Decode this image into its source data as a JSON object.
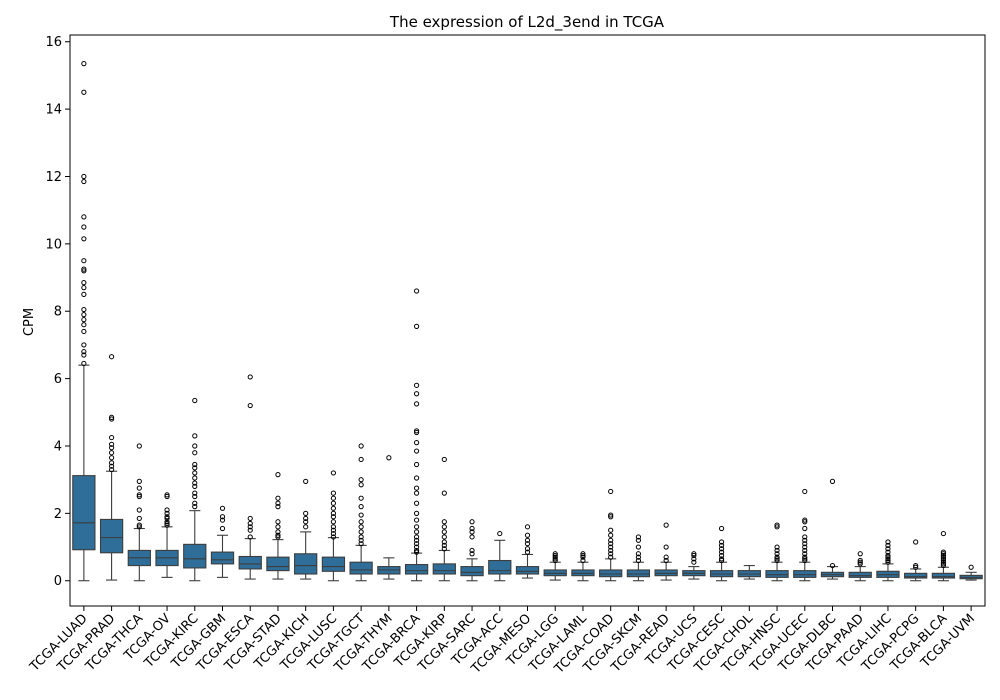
{
  "chart_data": {
    "type": "box",
    "title": "The expression of L2d_3end in TCGA",
    "xlabel": "",
    "ylabel": "CPM",
    "ylim": [
      -0.75,
      16.2
    ],
    "yticks": [
      0,
      2,
      4,
      6,
      8,
      10,
      12,
      14,
      16
    ],
    "grid": false,
    "box_color": "#2f6e99",
    "categories": [
      "TCGA-LUAD",
      "TCGA-PRAD",
      "TCGA-THCA",
      "TCGA-OV",
      "TCGA-KIRC",
      "TCGA-GBM",
      "TCGA-ESCA",
      "TCGA-STAD",
      "TCGA-KICH",
      "TCGA-LUSC",
      "TCGA-TGCT",
      "TCGA-THYM",
      "TCGA-BRCA",
      "TCGA-KIRP",
      "TCGA-SARC",
      "TCGA-ACC",
      "TCGA-MESO",
      "TCGA-LGG",
      "TCGA-LAML",
      "TCGA-COAD",
      "TCGA-SKCM",
      "TCGA-READ",
      "TCGA-UCS",
      "TCGA-CESC",
      "TCGA-CHOL",
      "TCGA-HNSC",
      "TCGA-UCEC",
      "TCGA-DLBC",
      "TCGA-PAAD",
      "TCGA-LIHC",
      "TCGA-PCPG",
      "TCGA-BLCA",
      "TCGA-UVM"
    ],
    "boxes": [
      {
        "min": 0,
        "q1": 0.92,
        "median": 1.72,
        "q3": 3.12,
        "max": 6.4,
        "outliers": [
          6.45,
          6.7,
          6.8,
          7.0,
          7.4,
          7.6,
          7.75,
          7.9,
          8.05,
          8.5,
          8.7,
          8.85,
          9.2,
          9.25,
          9.5,
          10.15,
          10.5,
          10.8,
          11.85,
          12.0,
          14.5,
          15.35
        ]
      },
      {
        "min": 0.02,
        "q1": 0.83,
        "median": 1.28,
        "q3": 1.82,
        "max": 3.25,
        "outliers": [
          3.3,
          3.4,
          3.5,
          3.65,
          3.8,
          3.95,
          4.05,
          4.25,
          4.8,
          4.85,
          6.65
        ]
      },
      {
        "min": 0,
        "q1": 0.45,
        "median": 0.68,
        "q3": 0.9,
        "max": 1.55,
        "outliers": [
          1.6,
          1.65,
          1.85,
          2.1,
          2.5,
          2.55,
          2.75,
          2.95,
          4.0
        ]
      },
      {
        "min": 0.1,
        "q1": 0.45,
        "median": 0.68,
        "q3": 0.9,
        "max": 1.6,
        "outliers": [
          1.65,
          1.7,
          1.75,
          1.85,
          1.9,
          2.0,
          2.1,
          2.5,
          2.55
        ]
      },
      {
        "min": 0,
        "q1": 0.38,
        "median": 0.65,
        "q3": 1.08,
        "max": 2.08,
        "outliers": [
          2.2,
          2.3,
          2.5,
          2.6,
          2.8,
          2.9,
          3.05,
          3.2,
          3.35,
          3.45,
          3.8,
          4.0,
          4.3,
          5.35
        ]
      },
      {
        "min": 0.1,
        "q1": 0.5,
        "median": 0.62,
        "q3": 0.85,
        "max": 1.35,
        "outliers": [
          1.55,
          1.8,
          1.9,
          2.15
        ]
      },
      {
        "min": 0.05,
        "q1": 0.35,
        "median": 0.5,
        "q3": 0.72,
        "max": 1.25,
        "outliers": [
          1.3,
          1.5,
          1.6,
          1.7,
          1.85,
          5.2,
          6.05
        ]
      },
      {
        "min": 0.05,
        "q1": 0.3,
        "median": 0.42,
        "q3": 0.7,
        "max": 1.22,
        "outliers": [
          1.3,
          1.35,
          1.45,
          1.6,
          1.75,
          2.2,
          2.3,
          2.45,
          3.15
        ]
      },
      {
        "min": 0.05,
        "q1": 0.2,
        "median": 0.45,
        "q3": 0.8,
        "max": 1.45,
        "outliers": [
          1.6,
          1.75,
          1.85,
          2.0,
          2.95
        ]
      },
      {
        "min": 0,
        "q1": 0.28,
        "median": 0.42,
        "q3": 0.7,
        "max": 1.28,
        "outliers": [
          1.3,
          1.4,
          1.5,
          1.6,
          1.75,
          1.9,
          2.0,
          2.15,
          2.3,
          2.45,
          2.6,
          3.2
        ]
      },
      {
        "min": 0,
        "q1": 0.2,
        "median": 0.32,
        "q3": 0.55,
        "max": 1.05,
        "outliers": [
          1.1,
          1.2,
          1.3,
          1.45,
          1.6,
          1.75,
          1.95,
          2.2,
          2.45,
          2.85,
          3.0,
          3.6,
          4.0
        ]
      },
      {
        "min": 0.05,
        "q1": 0.2,
        "median": 0.32,
        "q3": 0.42,
        "max": 0.68,
        "outliers": [
          3.65
        ]
      },
      {
        "min": 0,
        "q1": 0.2,
        "median": 0.3,
        "q3": 0.48,
        "max": 0.82,
        "outliers": [
          0.85,
          0.9,
          1.0,
          1.1,
          1.2,
          1.3,
          1.45,
          1.6,
          1.8,
          2.0,
          2.3,
          2.6,
          2.75,
          3.05,
          3.45,
          3.85,
          4.1,
          4.4,
          4.45,
          5.25,
          5.55,
          5.8,
          7.55,
          8.6
        ]
      },
      {
        "min": 0,
        "q1": 0.2,
        "median": 0.3,
        "q3": 0.5,
        "max": 0.9,
        "outliers": [
          0.95,
          1.05,
          1.15,
          1.3,
          1.45,
          1.6,
          1.75,
          2.6,
          3.6
        ]
      },
      {
        "min": 0,
        "q1": 0.15,
        "median": 0.25,
        "q3": 0.42,
        "max": 0.65,
        "outliers": [
          0.8,
          0.9,
          1.3,
          1.45,
          1.55,
          1.75
        ]
      },
      {
        "min": 0,
        "q1": 0.2,
        "median": 0.3,
        "q3": 0.6,
        "max": 1.2,
        "outliers": [
          1.4
        ]
      },
      {
        "min": 0.08,
        "q1": 0.2,
        "median": 0.28,
        "q3": 0.42,
        "max": 0.78,
        "outliers": [
          0.85,
          0.95,
          1.1,
          1.2,
          1.35,
          1.6
        ]
      },
      {
        "min": 0.02,
        "q1": 0.15,
        "median": 0.22,
        "q3": 0.32,
        "max": 0.55,
        "outliers": [
          0.6,
          0.65,
          0.7,
          0.75,
          0.8
        ]
      },
      {
        "min": 0,
        "q1": 0.15,
        "median": 0.22,
        "q3": 0.32,
        "max": 0.55,
        "outliers": [
          0.6,
          0.7,
          0.75,
          0.8
        ]
      },
      {
        "min": 0,
        "q1": 0.12,
        "median": 0.2,
        "q3": 0.32,
        "max": 0.65,
        "outliers": [
          0.7,
          0.8,
          0.9,
          1.0,
          1.1,
          1.2,
          1.35,
          1.5,
          1.9,
          1.95,
          2.65
        ]
      },
      {
        "min": 0,
        "q1": 0.12,
        "median": 0.2,
        "q3": 0.32,
        "max": 0.55,
        "outliers": [
          0.6,
          0.7,
          0.8,
          1.0,
          1.2,
          1.3
        ]
      },
      {
        "min": 0.02,
        "q1": 0.15,
        "median": 0.22,
        "q3": 0.32,
        "max": 0.55,
        "outliers": [
          0.6,
          0.7,
          1.0,
          1.65
        ]
      },
      {
        "min": 0.05,
        "q1": 0.15,
        "median": 0.22,
        "q3": 0.3,
        "max": 0.42,
        "outliers": [
          0.55,
          0.65,
          0.75,
          0.8
        ]
      },
      {
        "min": 0,
        "q1": 0.12,
        "median": 0.2,
        "q3": 0.3,
        "max": 0.55,
        "outliers": [
          0.6,
          0.65,
          0.75,
          0.85,
          0.95,
          1.05,
          1.15,
          1.55
        ]
      },
      {
        "min": 0.05,
        "q1": 0.12,
        "median": 0.2,
        "q3": 0.3,
        "max": 0.45,
        "outliers": []
      },
      {
        "min": 0,
        "q1": 0.1,
        "median": 0.18,
        "q3": 0.3,
        "max": 0.55,
        "outliers": [
          0.6,
          0.65,
          0.7,
          0.8,
          0.9,
          1.0,
          1.6,
          1.65
        ]
      },
      {
        "min": 0,
        "q1": 0.1,
        "median": 0.18,
        "q3": 0.3,
        "max": 0.55,
        "outliers": [
          0.6,
          0.65,
          0.7,
          0.8,
          0.9,
          1.0,
          1.1,
          1.2,
          1.3,
          1.55,
          1.75,
          1.8,
          2.65
        ]
      },
      {
        "min": 0.05,
        "q1": 0.12,
        "median": 0.18,
        "q3": 0.25,
        "max": 0.42,
        "outliers": [
          0.45,
          2.95
        ]
      },
      {
        "min": 0,
        "q1": 0.1,
        "median": 0.15,
        "q3": 0.25,
        "max": 0.42,
        "outliers": [
          0.5,
          0.55,
          0.6,
          0.8
        ]
      },
      {
        "min": 0,
        "q1": 0.1,
        "median": 0.18,
        "q3": 0.28,
        "max": 0.5,
        "outliers": [
          0.55,
          0.6,
          0.65,
          0.7,
          0.75,
          0.85,
          0.95,
          1.05,
          1.15
        ]
      },
      {
        "min": 0,
        "q1": 0.08,
        "median": 0.12,
        "q3": 0.22,
        "max": 0.35,
        "outliers": [
          0.4,
          0.45,
          1.15
        ]
      },
      {
        "min": 0,
        "q1": 0.08,
        "median": 0.12,
        "q3": 0.22,
        "max": 0.4,
        "outliers": [
          0.45,
          0.5,
          0.55,
          0.6,
          0.65,
          0.7,
          0.75,
          0.8,
          0.85,
          1.4
        ]
      },
      {
        "min": 0.02,
        "q1": 0.06,
        "median": 0.1,
        "q3": 0.16,
        "max": 0.25,
        "outliers": [
          0.4
        ]
      }
    ]
  }
}
